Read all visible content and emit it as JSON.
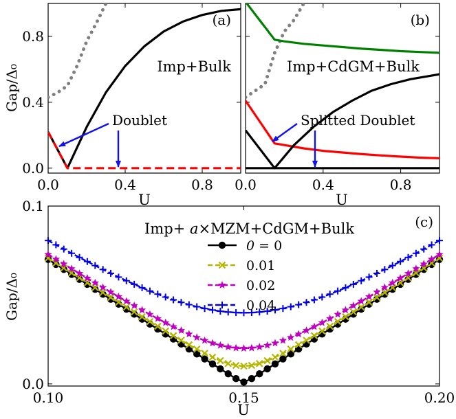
{
  "chart_data": [
    {
      "type": "line",
      "panel_label": "(a)",
      "annotation": "Imp+Bulk",
      "arrow_label": "Doublet",
      "xlabel": "U",
      "ylabel": "Gap/Δ₀",
      "xlim": [
        0,
        1.0
      ],
      "ylim": [
        -0.03,
        1.0
      ],
      "xticks": [
        0.0,
        0.4,
        0.8
      ],
      "xtick_labels": [
        "0.0",
        "0.4",
        "0.8"
      ],
      "yticks": [
        0.0,
        0.4,
        0.8
      ],
      "ytick_labels": [
        "0.0",
        "0.4",
        "0.8"
      ],
      "series": [
        {
          "color": "#808080",
          "style": "dotted",
          "x": [
            0.0,
            0.05,
            0.1,
            0.15,
            0.2,
            0.25,
            0.3
          ],
          "y": [
            0.43,
            0.46,
            0.5,
            0.62,
            0.77,
            0.88,
            1.0
          ]
        },
        {
          "color": "#000000",
          "style": "solid",
          "x": [
            0.0,
            0.1,
            0.2,
            0.3,
            0.4,
            0.5,
            0.6,
            0.7,
            0.8,
            0.9,
            1.0
          ],
          "y": [
            0.22,
            0.0,
            0.25,
            0.46,
            0.62,
            0.74,
            0.83,
            0.89,
            0.93,
            0.955,
            0.965
          ]
        },
        {
          "color": "#ff0000",
          "style": "dashed",
          "x": [
            0.0,
            0.1,
            0.2,
            0.4,
            0.6,
            0.8,
            1.0
          ],
          "y": [
            0.22,
            0.0,
            0.0,
            0.0,
            0.0,
            0.0,
            0.0
          ]
        }
      ]
    },
    {
      "type": "line",
      "panel_label": "(b)",
      "annotation": "Imp+CdGM+Bulk",
      "arrow_label": "Splitted Doublet",
      "xlabel": "U",
      "xlim": [
        0,
        1.0
      ],
      "ylim": [
        -0.03,
        1.0
      ],
      "xticks": [
        0.0,
        0.4,
        0.8
      ],
      "xtick_labels": [
        "0.0",
        "0.4",
        "0.8"
      ],
      "yticks": [
        0.0,
        0.4,
        0.8
      ],
      "series": [
        {
          "color": "#808080",
          "style": "dotted",
          "x": [
            0.0,
            0.05,
            0.1,
            0.15,
            0.2,
            0.25,
            0.3
          ],
          "y": [
            0.43,
            0.47,
            0.51,
            0.7,
            0.83,
            0.9,
            1.0
          ]
        },
        {
          "color": "#008000",
          "style": "solid",
          "x": [
            0.0,
            0.15,
            0.2,
            0.3,
            0.4,
            0.5,
            0.6,
            0.7,
            0.8,
            0.9,
            1.0
          ],
          "y": [
            1.01,
            0.78,
            0.77,
            0.755,
            0.745,
            0.735,
            0.725,
            0.718,
            0.71,
            0.705,
            0.7
          ]
        },
        {
          "color": "#ff0000",
          "style": "solid",
          "x": [
            0.0,
            0.15,
            0.2,
            0.3,
            0.4,
            0.5,
            0.6,
            0.7,
            0.8,
            0.9,
            1.0
          ],
          "y": [
            0.41,
            0.15,
            0.14,
            0.12,
            0.105,
            0.095,
            0.085,
            0.077,
            0.07,
            0.064,
            0.06
          ]
        },
        {
          "color": "#000000",
          "style": "solid",
          "x": [
            0.0,
            0.15,
            0.25,
            0.35,
            0.45,
            0.55,
            0.65,
            0.75,
            0.85,
            1.0
          ],
          "y": [
            0.23,
            0.0,
            0.14,
            0.25,
            0.34,
            0.41,
            0.47,
            0.51,
            0.54,
            0.57
          ]
        },
        {
          "color": "#000000",
          "style": "solid",
          "x": [
            0.0,
            1.0
          ],
          "y": [
            0.0,
            0.0
          ]
        }
      ]
    },
    {
      "type": "line",
      "panel_label": "(c)",
      "title": "Imp+ a×MZM+CdGM+Bulk",
      "xlabel": "U",
      "ylabel": "Gap/Δ₀",
      "xlim": [
        0.1,
        0.2
      ],
      "ylim": [
        -0.0012,
        0.1
      ],
      "xticks": [
        0.1,
        0.15,
        0.2
      ],
      "xtick_labels": [
        "0.10",
        "0.15",
        "0.20"
      ],
      "yticks": [
        0.0,
        0.1
      ],
      "ytick_labels": [
        "0.0",
        "0.1"
      ],
      "legend": "upper-center",
      "series": [
        {
          "name": "a = 0",
          "a": "0",
          "color": "#000000",
          "marker": "circle",
          "min_gap": 0.001
        },
        {
          "name": "0.01",
          "color": "#b5b500",
          "marker": "x",
          "min_gap": 0.01
        },
        {
          "name": "0.02",
          "color": "#c000c0",
          "marker": "star",
          "min_gap": 0.02
        },
        {
          "name": "0.04",
          "color": "#0000e0",
          "marker": "plus",
          "min_gap": 0.04
        }
      ],
      "x_center": 0.15,
      "x_step": 0.002,
      "gap_at_edge_a0": 0.07
    }
  ],
  "arrow_color": "#1010f0"
}
